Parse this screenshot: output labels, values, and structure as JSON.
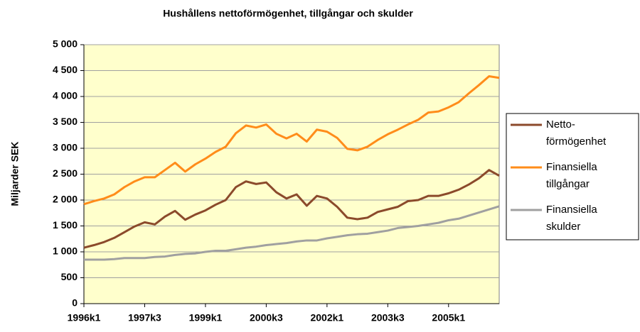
{
  "chart_data": {
    "type": "line",
    "title": "Hushållens nettoförmögenhet, tillgångar och skulder",
    "y_label": "Miljarder SEK",
    "categories": [
      "1996k1",
      null,
      null,
      null,
      null,
      null,
      "1997k3",
      null,
      null,
      null,
      null,
      null,
      "1999k1",
      null,
      null,
      null,
      null,
      null,
      "2000k3",
      null,
      null,
      null,
      null,
      null,
      "2002k1",
      null,
      null,
      null,
      null,
      null,
      "2003k3",
      null,
      null,
      null,
      null,
      null,
      "2005k1",
      null,
      null,
      null,
      null,
      null
    ],
    "series": [
      {
        "name": "Netto- förmögenhet",
        "color": "#8b4a2b",
        "values": [
          1080,
          1130,
          1190,
          1270,
          1380,
          1490,
          1570,
          1530,
          1680,
          1790,
          1620,
          1720,
          1800,
          1910,
          2000,
          2250,
          2360,
          2310,
          2340,
          2150,
          2030,
          2110,
          1890,
          2080,
          2030,
          1870,
          1660,
          1630,
          1660,
          1770,
          1820,
          1870,
          1980,
          2000,
          2080,
          2080,
          2130,
          2200,
          2300,
          2420,
          2580,
          2470
        ]
      },
      {
        "name": "Finansiella tillgångar",
        "color": "#ff8c1a",
        "values": [
          1920,
          1980,
          2030,
          2110,
          2250,
          2360,
          2440,
          2440,
          2580,
          2720,
          2550,
          2690,
          2800,
          2930,
          3030,
          3290,
          3440,
          3400,
          3460,
          3280,
          3190,
          3280,
          3130,
          3360,
          3320,
          3200,
          2990,
          2960,
          3030,
          3160,
          3270,
          3360,
          3460,
          3550,
          3690,
          3710,
          3790,
          3890,
          4060,
          4220,
          4390,
          4360
        ]
      },
      {
        "name": "Finansiella skulder",
        "color": "#a0a0a0",
        "values": [
          850,
          850,
          850,
          860,
          880,
          880,
          880,
          900,
          910,
          940,
          960,
          970,
          1000,
          1020,
          1020,
          1050,
          1080,
          1100,
          1130,
          1150,
          1170,
          1200,
          1220,
          1220,
          1260,
          1290,
          1320,
          1340,
          1350,
          1380,
          1410,
          1460,
          1480,
          1500,
          1530,
          1560,
          1610,
          1640,
          1700,
          1760,
          1820,
          1880
        ]
      }
    ],
    "ylim": [
      0,
      5000
    ],
    "yticks": [
      0,
      500,
      {
        "value": 1000,
        "label": "1 000"
      },
      {
        "value": 1500,
        "label": "1 500"
      },
      {
        "value": 2000,
        "label": "2 000"
      },
      {
        "value": 2500,
        "label": "2 500"
      },
      {
        "value": 3000,
        "label": "3 000"
      },
      {
        "value": 3500,
        "label": "3 500"
      },
      {
        "value": 4000,
        "label": "4 000"
      },
      {
        "value": 4500,
        "label": "4 500"
      },
      {
        "value": 5000,
        "label": "5 000"
      }
    ],
    "grid": true,
    "legend": "right",
    "plot_background": "#ffffcc"
  }
}
